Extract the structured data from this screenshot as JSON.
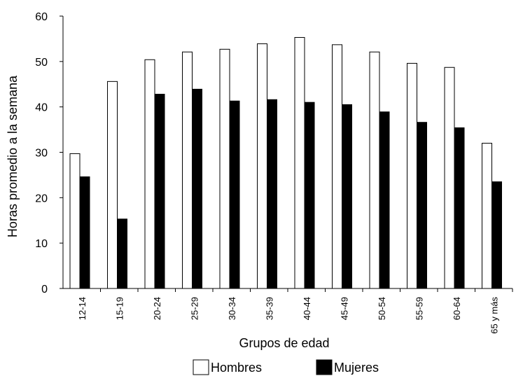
{
  "chart_data": {
    "type": "bar",
    "title": "",
    "xlabel": "Grupos de edad",
    "ylabel": "Horas promedio a la semana",
    "ylim": [
      0,
      60
    ],
    "yticks": [
      "0",
      "10",
      "20",
      "30",
      "40",
      "50",
      "60"
    ],
    "categories": [
      "12-14",
      "15-19",
      "20-24",
      "25-29",
      "30-34",
      "35-39",
      "40-44",
      "45-49",
      "50-54",
      "55-59",
      "60-64",
      "65 y más"
    ],
    "series": [
      {
        "name": "Hombres",
        "values": [
          29.7,
          45.6,
          50.4,
          52.1,
          52.7,
          53.9,
          55.3,
          53.7,
          52.1,
          49.6,
          48.7,
          32.0
        ],
        "color": "#ffffff",
        "stroke": "#000000"
      },
      {
        "name": "Mujeres",
        "values": [
          24.6,
          15.3,
          42.8,
          43.9,
          41.3,
          41.6,
          41.0,
          40.5,
          38.9,
          36.6,
          35.4,
          23.5
        ],
        "color": "#000000",
        "stroke": "#000000"
      }
    ],
    "grid": false,
    "legend_position": "bottom"
  }
}
